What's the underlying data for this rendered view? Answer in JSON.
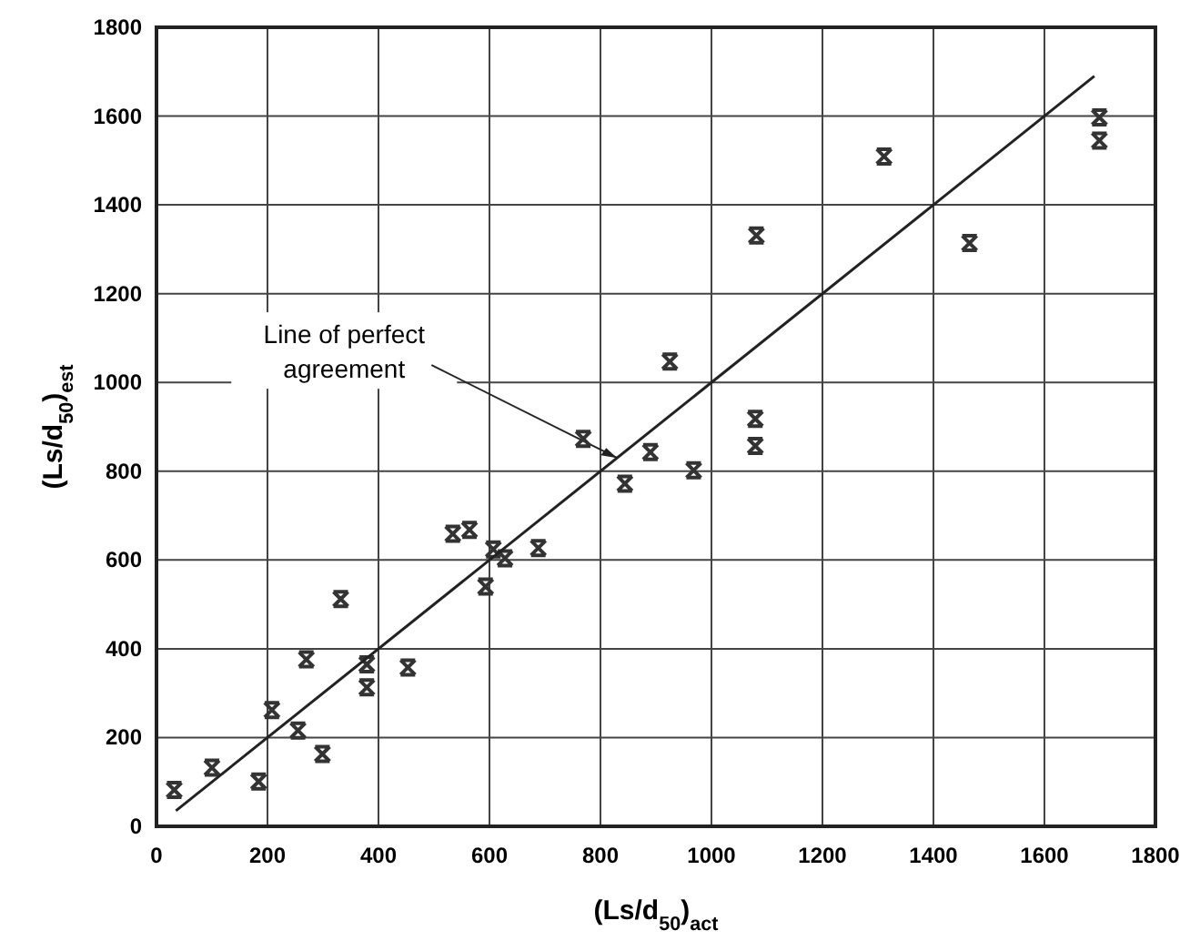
{
  "chart_data": {
    "type": "scatter",
    "xlabel": "(Ls/d$_{50}$)$_{act}$",
    "ylabel": "(Ls/d$_{50}$)$_{est}$",
    "xlim": [
      0,
      1800
    ],
    "ylim": [
      0,
      1800
    ],
    "xticks": [
      0,
      200,
      400,
      600,
      800,
      1000,
      1200,
      1400,
      1600,
      1800
    ],
    "yticks": [
      0,
      200,
      400,
      600,
      800,
      1000,
      1200,
      1400,
      1600,
      1800
    ],
    "grid": true,
    "marker": "cross",
    "annotations": [
      {
        "text": "Line of perfect agreement",
        "x": 830,
        "y": 830
      }
    ],
    "series": [
      {
        "color": "#333333",
        "x": [
          32,
          100,
          184,
          208,
          255,
          270,
          299,
          332,
          379,
          379,
          453,
          534,
          564,
          593,
          607,
          628,
          688,
          769,
          844,
          890,
          925,
          968,
          1081,
          1079,
          1079,
          1311,
          1465,
          1699,
          1699
        ],
        "values": [
          82,
          132,
          101,
          262,
          216,
          376,
          163,
          512,
          365,
          313,
          358,
          659,
          668,
          540,
          624,
          604,
          627,
          873,
          772,
          843,
          1047,
          802,
          1331,
          918,
          857,
          1509,
          1314,
          1597,
          1545
        ]
      },
      {
        "type": "line",
        "color": "#222222",
        "x": [
          35,
          1690
        ],
        "values": [
          35,
          1690
        ],
        "marker": "none",
        "line_style": "solid"
      }
    ]
  }
}
